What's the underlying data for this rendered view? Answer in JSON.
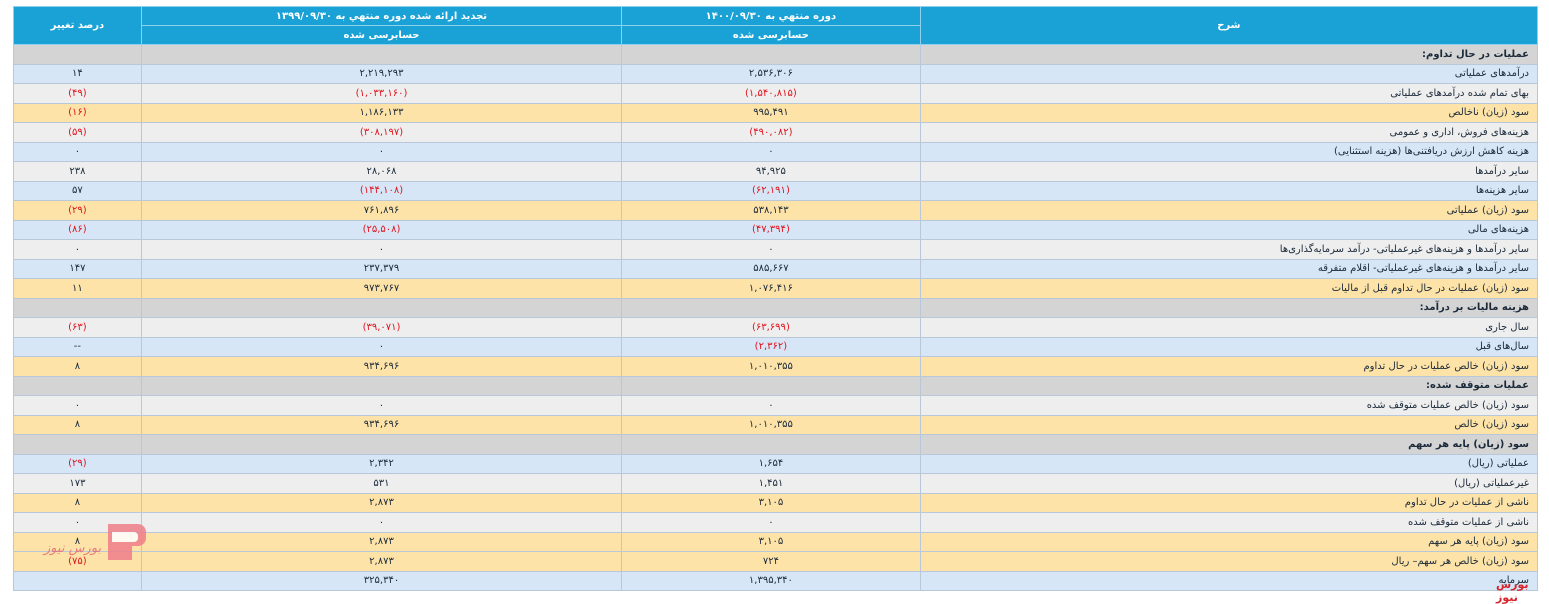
{
  "header": {
    "col_desc": "شرح",
    "col_current": "دوره منتهي به ۱۴۰۰/۰۹/۳۰",
    "col_previous": "تجدید ارائه شده دوره منتهي به ۱۳۹۹/۰۹/۳۰",
    "col_pct": "درصد تغییر",
    "sub_current": "حسابرسی شده",
    "sub_previous": "حسابرسی شده"
  },
  "rows": [
    {
      "type": "sec",
      "desc": "عملیات در حال تداوم:",
      "cur": "",
      "prev": "",
      "pct": ""
    },
    {
      "type": "blue",
      "desc": "درآمدهای عملیاتی",
      "cur": "۲,۵۳۶,۳۰۶",
      "prev": "۲,۲۱۹,۲۹۳",
      "pct": "۱۴"
    },
    {
      "type": "gray",
      "desc": "بهای تمام شده درآمدهای عملیاتی",
      "cur": "(۱,۵۴۰,۸۱۵)",
      "prev": "(۱,۰۳۳,۱۶۰)",
      "pct": "(۴۹)"
    },
    {
      "type": "yel",
      "desc": "سود (زیان) ناخالص",
      "cur": "۹۹۵,۴۹۱",
      "prev": "۱,۱۸۶,۱۳۳",
      "pct": "(۱۶)"
    },
    {
      "type": "gray",
      "desc": "هزینه‌های فروش، اداری و عمومی",
      "cur": "(۴۹۰,۰۸۲)",
      "prev": "(۳۰۸,۱۹۷)",
      "pct": "(۵۹)"
    },
    {
      "type": "blue",
      "desc": "هزینه کاهش ارزش دریافتنی‌ها (هزینه استثنایی)",
      "cur": "۰",
      "prev": "۰",
      "pct": "۰"
    },
    {
      "type": "gray",
      "desc": "سایر درآمدها",
      "cur": "۹۴,۹۲۵",
      "prev": "۲۸,۰۶۸",
      "pct": "۲۳۸"
    },
    {
      "type": "blue",
      "desc": "سایر هزینه‌ها",
      "cur": "(۶۲,۱۹۱)",
      "prev": "(۱۴۴,۱۰۸)",
      "pct": "۵۷"
    },
    {
      "type": "yel",
      "desc": "سود (زیان) عملیاتی",
      "cur": "۵۳۸,۱۴۳",
      "prev": "۷۶۱,۸۹۶",
      "pct": "(۲۹)"
    },
    {
      "type": "blue",
      "desc": "هزینه‌های مالی",
      "cur": "(۴۷,۳۹۴)",
      "prev": "(۲۵,۵۰۸)",
      "pct": "(۸۶)"
    },
    {
      "type": "gray",
      "desc": "سایر درآمدها و هزینه‌های غیرعملیاتی- درآمد سرمایه‌گذاری‌ها",
      "cur": "۰",
      "prev": "۰",
      "pct": "۰"
    },
    {
      "type": "blue",
      "desc": "سایر درآمدها و هزینه‌های غیرعملیاتی- اقلام متفرقه",
      "cur": "۵۸۵,۶۶۷",
      "prev": "۲۳۷,۳۷۹",
      "pct": "۱۴۷"
    },
    {
      "type": "yel",
      "desc": "سود (زیان) عملیات در حال تداوم قبل از مالیات",
      "cur": "۱,۰۷۶,۴۱۶",
      "prev": "۹۷۳,۷۶۷",
      "pct": "۱۱"
    },
    {
      "type": "sec",
      "desc": "هزینه مالیات بر درآمد:",
      "cur": "",
      "prev": "",
      "pct": ""
    },
    {
      "type": "gray",
      "desc": "سال جاری",
      "cur": "(۶۳,۶۹۹)",
      "prev": "(۳۹,۰۷۱)",
      "pct": "(۶۳)"
    },
    {
      "type": "blue",
      "desc": "سال‌های قبل",
      "cur": "(۲,۳۶۲)",
      "prev": "۰",
      "pct": "--"
    },
    {
      "type": "yel",
      "desc": "سود (زیان) خالص عملیات در حال تداوم",
      "cur": "۱,۰۱۰,۳۵۵",
      "prev": "۹۳۴,۶۹۶",
      "pct": "۸"
    },
    {
      "type": "sec",
      "desc": "عملیات متوقف شده:",
      "cur": "",
      "prev": "",
      "pct": ""
    },
    {
      "type": "gray",
      "desc": "سود (زیان) خالص عملیات متوقف شده",
      "cur": "۰",
      "prev": "۰",
      "pct": "۰"
    },
    {
      "type": "yel",
      "desc": "سود (زیان) خالص",
      "cur": "۱,۰۱۰,۳۵۵",
      "prev": "۹۳۴,۶۹۶",
      "pct": "۸"
    },
    {
      "type": "sec",
      "desc": "سود (زیان) پایه هر سهم",
      "cur": "",
      "prev": "",
      "pct": ""
    },
    {
      "type": "blue",
      "desc": "عملیاتی (ریال)",
      "cur": "۱,۶۵۴",
      "prev": "۲,۳۴۲",
      "pct": "(۲۹)"
    },
    {
      "type": "gray",
      "desc": "غیرعملیاتی (ریال)",
      "cur": "۱,۴۵۱",
      "prev": "۵۳۱",
      "pct": "۱۷۳"
    },
    {
      "type": "yel",
      "desc": "ناشی از عملیات در حال تداوم",
      "cur": "۳,۱۰۵",
      "prev": "۲,۸۷۳",
      "pct": "۸"
    },
    {
      "type": "gray",
      "desc": "ناشی از عملیات متوقف شده",
      "cur": "۰",
      "prev": "۰",
      "pct": "۰"
    },
    {
      "type": "yel",
      "desc": "سود (زیان) پایه هر سهم",
      "cur": "۳,۱۰۵",
      "prev": "۲,۸۷۳",
      "pct": "۸"
    },
    {
      "type": "yel",
      "desc": "سود (زیان) خالص هر سهم– ریال",
      "cur": "۷۲۴",
      "prev": "۲,۸۷۳",
      "pct": "(۷۵)"
    },
    {
      "type": "foot",
      "desc": "سرمایه",
      "cur": "۱,۳۹۵,۳۴۰",
      "prev": "۳۲۵,۳۴۰",
      "pct": ""
    }
  ],
  "watermark": {
    "brand_text": "بورس نیوز",
    "logo_text": "بورس نیوز"
  },
  "colors": {
    "header": "#1aa2d6",
    "negative": "#e0141e",
    "row_blue": "#d6e6f6",
    "row_gray": "#eeeeee",
    "row_yellow": "#fde3a7",
    "row_section": "#d4d4d4"
  }
}
